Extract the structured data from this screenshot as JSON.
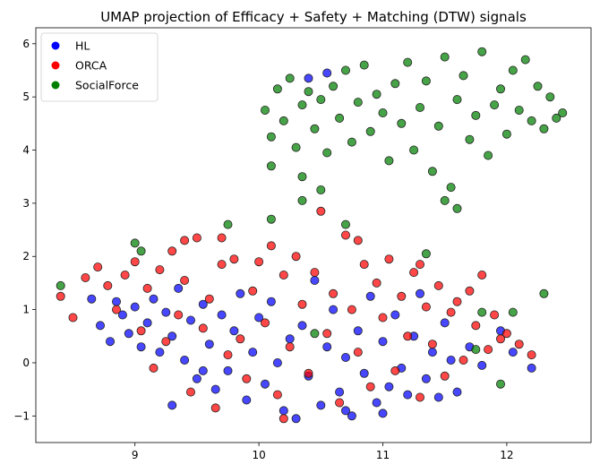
{
  "chart_data": {
    "type": "scatter",
    "title": "UMAP projection of Efficacy + Safety + Matching (DTW) signals",
    "xlabel": "",
    "ylabel": "",
    "xlim": [
      8.2,
      12.68
    ],
    "ylim": [
      -1.5,
      6.3
    ],
    "xticks": [
      9,
      10,
      11,
      12
    ],
    "yticks": [
      -1,
      0,
      1,
      2,
      3,
      4,
      5,
      6
    ],
    "grid": false,
    "legend_position": "top-left",
    "series": [
      {
        "name": "HL",
        "color": "#0000ff",
        "points": [
          [
            8.65,
            1.2
          ],
          [
            8.72,
            0.7
          ],
          [
            8.8,
            0.4
          ],
          [
            8.85,
            1.15
          ],
          [
            8.9,
            0.9
          ],
          [
            8.95,
            0.55
          ],
          [
            9.0,
            1.05
          ],
          [
            9.05,
            0.3
          ],
          [
            9.1,
            0.75
          ],
          [
            9.15,
            1.2
          ],
          [
            9.2,
            0.2
          ],
          [
            9.25,
            0.95
          ],
          [
            9.3,
            0.5
          ],
          [
            9.35,
            1.4
          ],
          [
            9.4,
            0.05
          ],
          [
            9.45,
            0.8
          ],
          [
            9.5,
            -0.3
          ],
          [
            9.55,
            1.1
          ],
          [
            9.6,
            0.35
          ],
          [
            9.65,
            -0.5
          ],
          [
            9.7,
            0.9
          ],
          [
            9.75,
            -0.15
          ],
          [
            9.8,
            0.6
          ],
          [
            9.85,
            1.3
          ],
          [
            9.9,
            -0.7
          ],
          [
            9.95,
            0.2
          ],
          [
            10.0,
            0.85
          ],
          [
            10.05,
            -0.4
          ],
          [
            10.1,
            1.15
          ],
          [
            10.15,
            0.0
          ],
          [
            10.2,
            -0.9
          ],
          [
            10.25,
            0.45
          ],
          [
            10.3,
            -1.05
          ],
          [
            10.35,
            0.7
          ],
          [
            10.4,
            -0.25
          ],
          [
            10.45,
            1.55
          ],
          [
            10.5,
            -0.8
          ],
          [
            10.55,
            0.3
          ],
          [
            10.6,
            1.0
          ],
          [
            10.65,
            -0.55
          ],
          [
            10.7,
            0.1
          ],
          [
            10.75,
            -1.0
          ],
          [
            10.8,
            0.6
          ],
          [
            10.85,
            -0.2
          ],
          [
            10.9,
            1.25
          ],
          [
            10.95,
            -0.75
          ],
          [
            11.0,
            0.4
          ],
          [
            11.05,
            -0.45
          ],
          [
            11.1,
            0.9
          ],
          [
            11.15,
            -0.1
          ],
          [
            11.2,
            -0.6
          ],
          [
            11.25,
            0.5
          ],
          [
            11.3,
            1.3
          ],
          [
            11.35,
            -0.3
          ],
          [
            11.4,
            0.2
          ],
          [
            11.45,
            -0.65
          ],
          [
            11.5,
            0.75
          ],
          [
            11.55,
            0.05
          ],
          [
            11.6,
            -0.55
          ],
          [
            11.7,
            0.3
          ],
          [
            11.8,
            -0.05
          ],
          [
            11.95,
            0.6
          ],
          [
            12.05,
            0.2
          ],
          [
            12.2,
            -0.1
          ],
          [
            10.4,
            5.35
          ],
          [
            10.55,
            5.45
          ],
          [
            9.55,
            -0.15
          ],
          [
            10.7,
            -0.9
          ],
          [
            11.0,
            -0.95
          ],
          [
            9.3,
            -0.8
          ]
        ]
      },
      {
        "name": "ORCA",
        "color": "#ff0000",
        "points": [
          [
            8.4,
            1.25
          ],
          [
            8.5,
            0.85
          ],
          [
            8.6,
            1.6
          ],
          [
            8.7,
            1.8
          ],
          [
            8.78,
            1.45
          ],
          [
            8.85,
            1.0
          ],
          [
            8.92,
            1.65
          ],
          [
            9.0,
            1.9
          ],
          [
            9.05,
            0.6
          ],
          [
            9.1,
            1.4
          ],
          [
            9.15,
            -0.1
          ],
          [
            9.2,
            1.75
          ],
          [
            9.25,
            0.4
          ],
          [
            9.3,
            2.1
          ],
          [
            9.35,
            0.9
          ],
          [
            9.4,
            1.55
          ],
          [
            9.45,
            -0.55
          ],
          [
            9.5,
            2.35
          ],
          [
            9.55,
            0.65
          ],
          [
            9.6,
            1.2
          ],
          [
            9.65,
            -0.85
          ],
          [
            9.7,
            1.85
          ],
          [
            9.75,
            0.15
          ],
          [
            9.8,
            1.95
          ],
          [
            9.85,
            0.45
          ],
          [
            9.9,
            -0.3
          ],
          [
            9.95,
            1.35
          ],
          [
            10.0,
            1.9
          ],
          [
            10.05,
            0.75
          ],
          [
            10.1,
            2.2
          ],
          [
            10.15,
            -0.6
          ],
          [
            10.2,
            1.65
          ],
          [
            10.25,
            0.3
          ],
          [
            10.3,
            2.0
          ],
          [
            10.35,
            1.1
          ],
          [
            10.4,
            -0.2
          ],
          [
            10.45,
            1.7
          ],
          [
            10.5,
            2.85
          ],
          [
            10.55,
            0.55
          ],
          [
            10.6,
            1.3
          ],
          [
            10.65,
            -0.75
          ],
          [
            10.7,
            2.4
          ],
          [
            10.75,
            1.0
          ],
          [
            10.8,
            0.2
          ],
          [
            10.85,
            1.85
          ],
          [
            10.9,
            -0.45
          ],
          [
            10.95,
            1.5
          ],
          [
            11.0,
            0.85
          ],
          [
            11.05,
            1.95
          ],
          [
            11.1,
            -0.15
          ],
          [
            11.15,
            1.25
          ],
          [
            11.2,
            0.5
          ],
          [
            11.25,
            1.7
          ],
          [
            11.3,
            -0.65
          ],
          [
            11.35,
            1.05
          ],
          [
            11.4,
            0.35
          ],
          [
            11.45,
            1.45
          ],
          [
            11.5,
            -0.25
          ],
          [
            11.55,
            0.95
          ],
          [
            11.6,
            1.15
          ],
          [
            11.65,
            0.05
          ],
          [
            11.7,
            1.35
          ],
          [
            11.75,
            0.7
          ],
          [
            11.8,
            1.65
          ],
          [
            11.85,
            0.25
          ],
          [
            11.9,
            0.9
          ],
          [
            11.95,
            0.45
          ],
          [
            12.0,
            0.55
          ],
          [
            12.1,
            0.35
          ],
          [
            12.2,
            0.15
          ],
          [
            9.7,
            2.35
          ],
          [
            10.2,
            -1.05
          ],
          [
            10.8,
            2.3
          ],
          [
            9.4,
            2.3
          ],
          [
            11.3,
            1.85
          ]
        ]
      },
      {
        "name": "SocialForce",
        "color": "#008000",
        "points": [
          [
            10.05,
            4.75
          ],
          [
            10.1,
            4.25
          ],
          [
            10.15,
            5.15
          ],
          [
            10.2,
            4.55
          ],
          [
            10.25,
            5.35
          ],
          [
            10.3,
            4.05
          ],
          [
            10.35,
            4.85
          ],
          [
            10.4,
            5.1
          ],
          [
            10.45,
            4.4
          ],
          [
            10.5,
            4.95
          ],
          [
            10.55,
            3.95
          ],
          [
            10.6,
            5.2
          ],
          [
            10.65,
            4.6
          ],
          [
            10.7,
            5.5
          ],
          [
            10.75,
            4.15
          ],
          [
            10.8,
            4.9
          ],
          [
            10.85,
            5.6
          ],
          [
            10.9,
            4.35
          ],
          [
            10.95,
            5.05
          ],
          [
            11.0,
            4.7
          ],
          [
            11.05,
            3.8
          ],
          [
            11.1,
            5.25
          ],
          [
            11.15,
            4.5
          ],
          [
            11.2,
            5.65
          ],
          [
            11.25,
            4.0
          ],
          [
            11.3,
            4.8
          ],
          [
            11.35,
            5.3
          ],
          [
            11.4,
            3.6
          ],
          [
            11.45,
            4.45
          ],
          [
            11.5,
            5.75
          ],
          [
            11.55,
            3.3
          ],
          [
            11.6,
            4.95
          ],
          [
            11.65,
            5.4
          ],
          [
            11.7,
            4.2
          ],
          [
            11.75,
            4.65
          ],
          [
            11.8,
            5.85
          ],
          [
            11.85,
            3.9
          ],
          [
            11.9,
            4.85
          ],
          [
            11.95,
            5.15
          ],
          [
            12.0,
            4.3
          ],
          [
            12.05,
            5.5
          ],
          [
            12.1,
            4.75
          ],
          [
            12.15,
            5.7
          ],
          [
            12.2,
            4.55
          ],
          [
            12.25,
            5.2
          ],
          [
            12.3,
            4.4
          ],
          [
            12.35,
            5.0
          ],
          [
            12.4,
            4.6
          ],
          [
            12.45,
            4.7
          ],
          [
            10.1,
            3.7
          ],
          [
            10.35,
            3.5
          ],
          [
            10.35,
            3.05
          ],
          [
            10.5,
            3.25
          ],
          [
            10.7,
            2.6
          ],
          [
            11.6,
            2.9
          ],
          [
            11.5,
            3.05
          ],
          [
            12.3,
            1.3
          ],
          [
            9.75,
            2.6
          ],
          [
            9.05,
            2.1
          ],
          [
            8.4,
            1.45
          ],
          [
            9.0,
            2.25
          ],
          [
            11.35,
            2.05
          ],
          [
            10.45,
            0.55
          ],
          [
            11.8,
            0.95
          ],
          [
            11.75,
            0.25
          ],
          [
            12.05,
            0.95
          ],
          [
            11.95,
            -0.4
          ],
          [
            10.1,
            2.7
          ]
        ]
      }
    ]
  }
}
